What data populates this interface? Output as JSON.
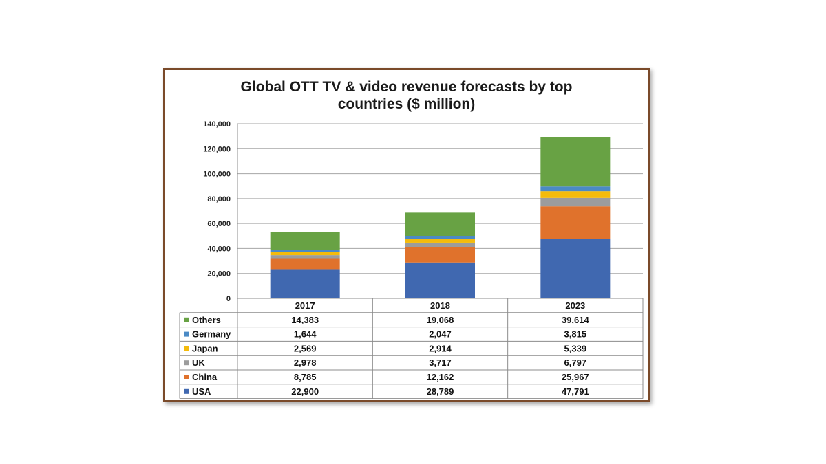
{
  "chart_data": {
    "type": "bar",
    "stacked": true,
    "title_line1": "Global OTT TV & video revenue forecasts by top",
    "title_line2": "countries ($ million)",
    "categories": [
      "2017",
      "2018",
      "2023"
    ],
    "ylim": [
      0,
      140000
    ],
    "yticks": [
      0,
      20000,
      40000,
      60000,
      80000,
      100000,
      120000,
      140000
    ],
    "ytick_labels": [
      "0",
      "20,000",
      "40,000",
      "60,000",
      "80,000",
      "100,000",
      "120,000",
      "140,000"
    ],
    "grid": true,
    "legend_placement": "data-table",
    "series": [
      {
        "name": "USA",
        "color": "#4068b0",
        "values": [
          22900,
          28789,
          47791
        ],
        "labels": [
          "22,900",
          "28,789",
          "47,791"
        ]
      },
      {
        "name": "China",
        "color": "#e0722c",
        "values": [
          8785,
          12162,
          25967
        ],
        "labels": [
          "8,785",
          "12,162",
          "25,967"
        ]
      },
      {
        "name": "UK",
        "color": "#9c9c9c",
        "values": [
          2978,
          3717,
          6797
        ],
        "labels": [
          "2,978",
          "3,717",
          "6,797"
        ]
      },
      {
        "name": "Japan",
        "color": "#f4bb0c",
        "values": [
          2569,
          2914,
          5339
        ],
        "labels": [
          "2,569",
          "2,914",
          "5,339"
        ]
      },
      {
        "name": "Germany",
        "color": "#4b8ac5",
        "values": [
          1644,
          2047,
          3815
        ],
        "labels": [
          "1,644",
          "2,047",
          "3,815"
        ]
      },
      {
        "name": "Others",
        "color": "#68a244",
        "values": [
          14383,
          19068,
          39614
        ],
        "labels": [
          "14,383",
          "19,068",
          "39,614"
        ]
      }
    ]
  }
}
